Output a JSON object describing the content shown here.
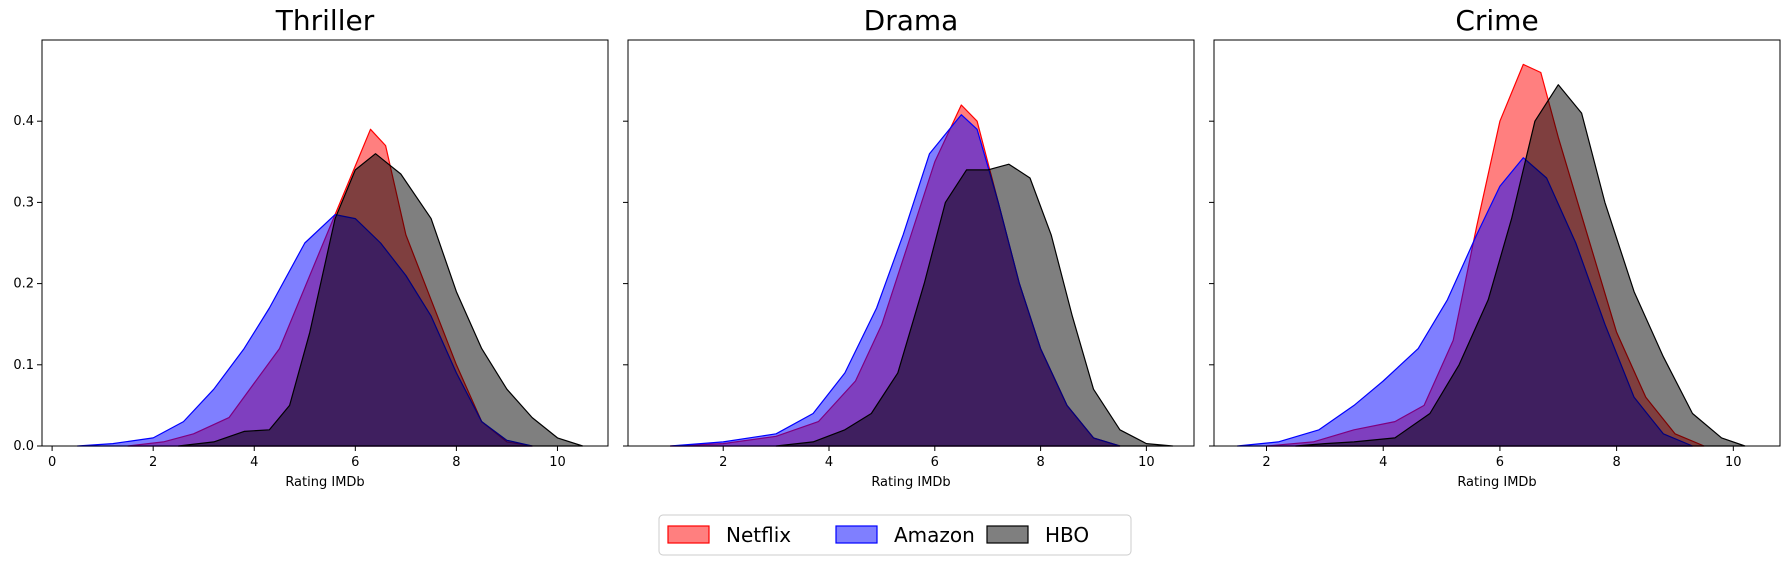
{
  "chart_data": {
    "type": "area",
    "chart_kind": "kde-density",
    "colors": {
      "Netflix": "#ff0000",
      "Amazon": "#0000ff",
      "HBO": "#000000"
    },
    "legend": {
      "placement": "bottom-center",
      "entries": [
        "Netflix",
        "Amazon",
        "HBO"
      ]
    },
    "ylim": [
      0,
      0.5
    ],
    "yticks": [
      "0.0",
      "0.1",
      "0.2",
      "0.3",
      "0.4"
    ],
    "grid": false,
    "panels": [
      {
        "title": "Thriller",
        "xlabel": "Rating IMDb",
        "xlim": [
          -0.2,
          11.0
        ],
        "xticks": [
          "0",
          "2",
          "4",
          "6",
          "8",
          "10"
        ],
        "series": [
          {
            "name": "Netflix",
            "points": [
              [
                1.5,
                0
              ],
              [
                2.2,
                0.005
              ],
              [
                2.8,
                0.015
              ],
              [
                3.5,
                0.035
              ],
              [
                4.5,
                0.12
              ],
              [
                5.3,
                0.24
              ],
              [
                5.9,
                0.33
              ],
              [
                6.3,
                0.39
              ],
              [
                6.6,
                0.37
              ],
              [
                7.0,
                0.26
              ],
              [
                7.5,
                0.18
              ],
              [
                8.0,
                0.1
              ],
              [
                8.5,
                0.03
              ],
              [
                9.0,
                0.005
              ],
              [
                9.5,
                0
              ]
            ]
          },
          {
            "name": "Amazon",
            "points": [
              [
                0.5,
                0
              ],
              [
                1.2,
                0.003
              ],
              [
                2.0,
                0.01
              ],
              [
                2.6,
                0.03
              ],
              [
                3.2,
                0.07
              ],
              [
                3.8,
                0.12
              ],
              [
                4.3,
                0.17
              ],
              [
                5.0,
                0.25
              ],
              [
                5.6,
                0.285
              ],
              [
                6.0,
                0.28
              ],
              [
                6.5,
                0.25
              ],
              [
                7.0,
                0.21
              ],
              [
                7.5,
                0.16
              ],
              [
                8.0,
                0.09
              ],
              [
                8.5,
                0.03
              ],
              [
                9.0,
                0.007
              ],
              [
                9.5,
                0
              ]
            ]
          },
          {
            "name": "HBO",
            "points": [
              [
                2.5,
                0
              ],
              [
                3.2,
                0.005
              ],
              [
                3.8,
                0.018
              ],
              [
                4.3,
                0.02
              ],
              [
                4.7,
                0.05
              ],
              [
                5.1,
                0.14
              ],
              [
                5.6,
                0.28
              ],
              [
                6.0,
                0.34
              ],
              [
                6.4,
                0.36
              ],
              [
                6.9,
                0.335
              ],
              [
                7.5,
                0.28
              ],
              [
                8.0,
                0.19
              ],
              [
                8.5,
                0.12
              ],
              [
                9.0,
                0.07
              ],
              [
                9.5,
                0.035
              ],
              [
                10.0,
                0.01
              ],
              [
                10.5,
                0
              ]
            ]
          }
        ]
      },
      {
        "title": "Drama",
        "xlabel": "Rating IMDb",
        "xlim": [
          0.2,
          10.9
        ],
        "xticks": [
          "2",
          "4",
          "6",
          "8",
          "10"
        ],
        "series": [
          {
            "name": "Netflix",
            "points": [
              [
                1.0,
                0
              ],
              [
                2.0,
                0.003
              ],
              [
                3.0,
                0.012
              ],
              [
                3.8,
                0.03
              ],
              [
                4.5,
                0.08
              ],
              [
                5.0,
                0.15
              ],
              [
                5.5,
                0.25
              ],
              [
                6.0,
                0.35
              ],
              [
                6.5,
                0.42
              ],
              [
                6.8,
                0.4
              ],
              [
                7.2,
                0.3
              ],
              [
                7.6,
                0.2
              ],
              [
                8.0,
                0.12
              ],
              [
                8.5,
                0.05
              ],
              [
                9.0,
                0.01
              ],
              [
                9.5,
                0
              ]
            ]
          },
          {
            "name": "Amazon",
            "points": [
              [
                1.0,
                0
              ],
              [
                2.0,
                0.005
              ],
              [
                3.0,
                0.015
              ],
              [
                3.7,
                0.04
              ],
              [
                4.3,
                0.09
              ],
              [
                4.9,
                0.17
              ],
              [
                5.4,
                0.26
              ],
              [
                5.9,
                0.36
              ],
              [
                6.5,
                0.408
              ],
              [
                6.8,
                0.39
              ],
              [
                7.2,
                0.3
              ],
              [
                7.6,
                0.2
              ],
              [
                8.0,
                0.12
              ],
              [
                8.5,
                0.05
              ],
              [
                9.0,
                0.01
              ],
              [
                9.5,
                0
              ]
            ]
          },
          {
            "name": "HBO",
            "points": [
              [
                3.0,
                0
              ],
              [
                3.7,
                0.005
              ],
              [
                4.3,
                0.02
              ],
              [
                4.8,
                0.04
              ],
              [
                5.3,
                0.09
              ],
              [
                5.8,
                0.2
              ],
              [
                6.2,
                0.3
              ],
              [
                6.6,
                0.34
              ],
              [
                7.0,
                0.34
              ],
              [
                7.4,
                0.347
              ],
              [
                7.8,
                0.33
              ],
              [
                8.2,
                0.26
              ],
              [
                8.6,
                0.16
              ],
              [
                9.0,
                0.07
              ],
              [
                9.5,
                0.02
              ],
              [
                10.0,
                0.003
              ],
              [
                10.5,
                0
              ]
            ]
          }
        ]
      },
      {
        "title": "Crime",
        "xlabel": "Rating IMDb",
        "xlim": [
          1.1,
          10.8
        ],
        "xticks": [
          "2",
          "4",
          "6",
          "8",
          "10"
        ],
        "series": [
          {
            "name": "Netflix",
            "points": [
              [
                2.0,
                0
              ],
              [
                2.8,
                0.005
              ],
              [
                3.5,
                0.02
              ],
              [
                4.2,
                0.03
              ],
              [
                4.7,
                0.05
              ],
              [
                5.2,
                0.13
              ],
              [
                5.6,
                0.27
              ],
              [
                6.0,
                0.4
              ],
              [
                6.4,
                0.47
              ],
              [
                6.7,
                0.46
              ],
              [
                7.0,
                0.38
              ],
              [
                7.5,
                0.26
              ],
              [
                8.0,
                0.14
              ],
              [
                8.5,
                0.06
              ],
              [
                9.0,
                0.015
              ],
              [
                9.5,
                0
              ]
            ]
          },
          {
            "name": "Amazon",
            "points": [
              [
                1.5,
                0
              ],
              [
                2.2,
                0.005
              ],
              [
                2.9,
                0.02
              ],
              [
                3.5,
                0.05
              ],
              [
                4.0,
                0.08
              ],
              [
                4.6,
                0.12
              ],
              [
                5.1,
                0.18
              ],
              [
                5.6,
                0.26
              ],
              [
                6.0,
                0.32
              ],
              [
                6.4,
                0.355
              ],
              [
                6.8,
                0.33
              ],
              [
                7.3,
                0.25
              ],
              [
                7.8,
                0.15
              ],
              [
                8.3,
                0.06
              ],
              [
                8.8,
                0.015
              ],
              [
                9.3,
                0
              ]
            ]
          },
          {
            "name": "HBO",
            "points": [
              [
                2.5,
                0
              ],
              [
                3.0,
                0.003
              ],
              [
                3.5,
                0.005
              ],
              [
                4.2,
                0.01
              ],
              [
                4.8,
                0.04
              ],
              [
                5.3,
                0.1
              ],
              [
                5.8,
                0.18
              ],
              [
                6.2,
                0.28
              ],
              [
                6.6,
                0.4
              ],
              [
                7.0,
                0.445
              ],
              [
                7.4,
                0.41
              ],
              [
                7.8,
                0.3
              ],
              [
                8.3,
                0.19
              ],
              [
                8.8,
                0.11
              ],
              [
                9.3,
                0.04
              ],
              [
                9.8,
                0.01
              ],
              [
                10.2,
                0
              ]
            ]
          }
        ]
      }
    ]
  }
}
